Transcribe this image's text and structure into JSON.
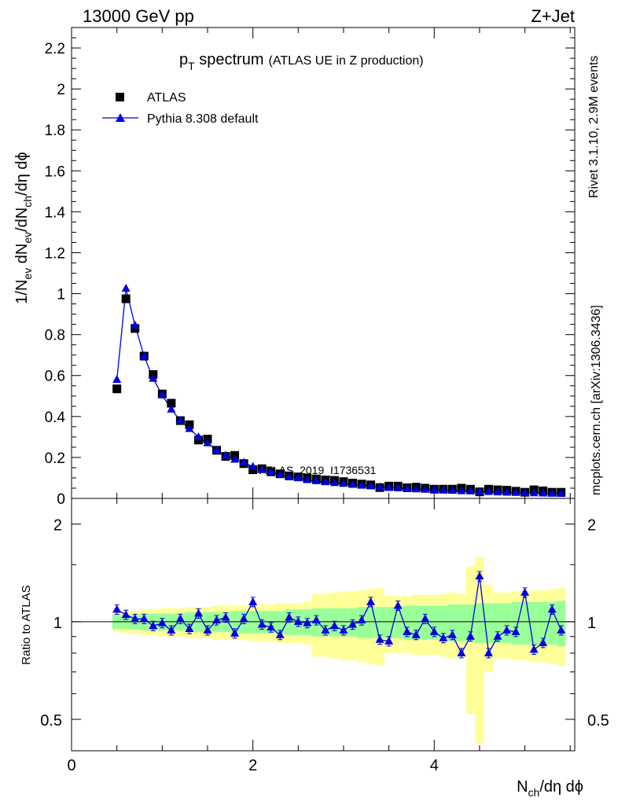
{
  "header": {
    "left": "13000 GeV pp",
    "right": "Z+Jet"
  },
  "side_labels": {
    "rivet": "Rivet 3.1.10,  2.9M events",
    "mcplots": "mcplots.cern.ch [arXiv:1306.3436]"
  },
  "watermark": "ATLAS_2019_I1736531",
  "colors": {
    "mc": "#0000dd",
    "band_stat": "#99ff99",
    "band_total": "#ffff99",
    "data": "#000000"
  },
  "chart_data": [
    {
      "type": "scatter",
      "title_main": "p",
      "title_sub": "T",
      "title_rest": " spectrum",
      "title_paren": "(ATLAS UE in Z production)",
      "ylabel": "1/N_ev dN_ev/dN_ch/dη dϕ",
      "xlim": [
        0,
        5.55
      ],
      "ylim": [
        0,
        2.3
      ],
      "yticks": [
        "0",
        "0.2",
        "0.4",
        "0.6",
        "0.8",
        "1",
        "1.2",
        "1.4",
        "1.6",
        "1.8",
        "2",
        "2.2"
      ],
      "legend": {
        "placement": "top-left",
        "entries": [
          "ATLAS",
          "Pythia 8.308 default"
        ]
      },
      "x": [
        0.5,
        0.6,
        0.7,
        0.8,
        0.9,
        1.0,
        1.1,
        1.2,
        1.3,
        1.4,
        1.5,
        1.6,
        1.7,
        1.8,
        1.9,
        2.0,
        2.1,
        2.2,
        2.3,
        2.4,
        2.5,
        2.6,
        2.7,
        2.8,
        2.9,
        3.0,
        3.1,
        3.2,
        3.3,
        3.4,
        3.5,
        3.6,
        3.7,
        3.8,
        3.9,
        4.0,
        4.1,
        4.2,
        4.3,
        4.4,
        4.5,
        4.6,
        4.7,
        4.8,
        4.9,
        5.0,
        5.1,
        5.2,
        5.3,
        5.4
      ],
      "series": [
        {
          "name": "ATLAS",
          "marker": "square",
          "values": [
            0.535,
            0.975,
            0.83,
            0.695,
            0.605,
            0.51,
            0.465,
            0.38,
            0.36,
            0.285,
            0.29,
            0.235,
            0.205,
            0.21,
            0.17,
            0.14,
            0.145,
            0.13,
            0.12,
            0.11,
            0.105,
            0.1,
            0.095,
            0.09,
            0.088,
            0.082,
            0.075,
            0.07,
            0.066,
            0.053,
            0.06,
            0.06,
            0.052,
            0.055,
            0.05,
            0.045,
            0.045,
            0.045,
            0.05,
            0.045,
            0.032,
            0.045,
            0.042,
            0.04,
            0.035,
            0.03,
            0.042,
            0.037,
            0.03,
            0.03
          ]
        },
        {
          "name": "Pythia 8.308 default",
          "marker": "triangle",
          "values": [
            0.58,
            1.025,
            0.845,
            0.695,
            0.585,
            0.505,
            0.435,
            0.38,
            0.34,
            0.3,
            0.27,
            0.235,
            0.21,
            0.19,
            0.175,
            0.155,
            0.14,
            0.13,
            0.115,
            0.105,
            0.1,
            0.09,
            0.085,
            0.08,
            0.076,
            0.072,
            0.067,
            0.063,
            0.06,
            0.055,
            0.052,
            0.05,
            0.048,
            0.045,
            0.043,
            0.042,
            0.04,
            0.038,
            0.036,
            0.035,
            0.033,
            0.032,
            0.03,
            0.029,
            0.028,
            0.027,
            0.026,
            0.025,
            0.024,
            0.023
          ]
        }
      ]
    },
    {
      "type": "scatter",
      "ylabel": "Ratio to ATLAS",
      "xlabel": "N_ch/dη dϕ",
      "xlim": [
        0,
        5.55
      ],
      "ylim": [
        0.4,
        2.4
      ],
      "ylog": true,
      "xticks": [
        "0",
        "2",
        "4"
      ],
      "yticks": [
        "0.5",
        "1",
        "2"
      ],
      "x": [
        0.5,
        0.6,
        0.7,
        0.8,
        0.9,
        1.0,
        1.1,
        1.2,
        1.3,
        1.4,
        1.5,
        1.6,
        1.7,
        1.8,
        1.9,
        2.0,
        2.1,
        2.2,
        2.3,
        2.4,
        2.5,
        2.6,
        2.7,
        2.8,
        2.9,
        3.0,
        3.1,
        3.2,
        3.3,
        3.4,
        3.5,
        3.6,
        3.7,
        3.8,
        3.9,
        4.0,
        4.1,
        4.2,
        4.3,
        4.4,
        4.5,
        4.6,
        4.7,
        4.8,
        4.9,
        5.0,
        5.1,
        5.2,
        5.3,
        5.4
      ],
      "ratio": [
        1.09,
        1.05,
        1.02,
        1.02,
        0.97,
        0.99,
        0.94,
        1.02,
        0.95,
        1.06,
        0.94,
        1.01,
        1.03,
        0.92,
        1.02,
        1.15,
        0.98,
        0.96,
        0.91,
        1.03,
        1.0,
        0.99,
        1.01,
        0.94,
        0.97,
        0.94,
        0.98,
        1.01,
        1.15,
        0.88,
        0.87,
        1.12,
        0.93,
        0.91,
        1.02,
        0.93,
        0.89,
        0.91,
        0.8,
        0.9,
        1.38,
        0.8,
        0.9,
        0.94,
        0.93,
        1.23,
        0.82,
        0.86,
        1.09,
        0.94
      ],
      "band_stat": [
        0.05,
        0.05,
        0.05,
        0.06,
        0.06,
        0.06,
        0.06,
        0.06,
        0.07,
        0.07,
        0.07,
        0.07,
        0.07,
        0.08,
        0.08,
        0.08,
        0.08,
        0.08,
        0.08,
        0.09,
        0.09,
        0.09,
        0.1,
        0.1,
        0.1,
        0.1,
        0.1,
        0.11,
        0.11,
        0.11,
        0.11,
        0.11,
        0.12,
        0.12,
        0.12,
        0.12,
        0.12,
        0.13,
        0.13,
        0.13,
        0.14,
        0.14,
        0.14,
        0.14,
        0.15,
        0.15,
        0.15,
        0.15,
        0.15,
        0.16
      ],
      "band_total": [
        0.07,
        0.08,
        0.08,
        0.09,
        0.09,
        0.1,
        0.1,
        0.1,
        0.11,
        0.11,
        0.11,
        0.12,
        0.12,
        0.12,
        0.12,
        0.13,
        0.13,
        0.13,
        0.14,
        0.14,
        0.14,
        0.15,
        0.22,
        0.22,
        0.23,
        0.24,
        0.24,
        0.25,
        0.26,
        0.27,
        0.2,
        0.2,
        0.2,
        0.21,
        0.21,
        0.21,
        0.22,
        0.23,
        0.22,
        0.48,
        0.58,
        0.3,
        0.23,
        0.23,
        0.24,
        0.24,
        0.25,
        0.25,
        0.26,
        0.27
      ]
    }
  ]
}
